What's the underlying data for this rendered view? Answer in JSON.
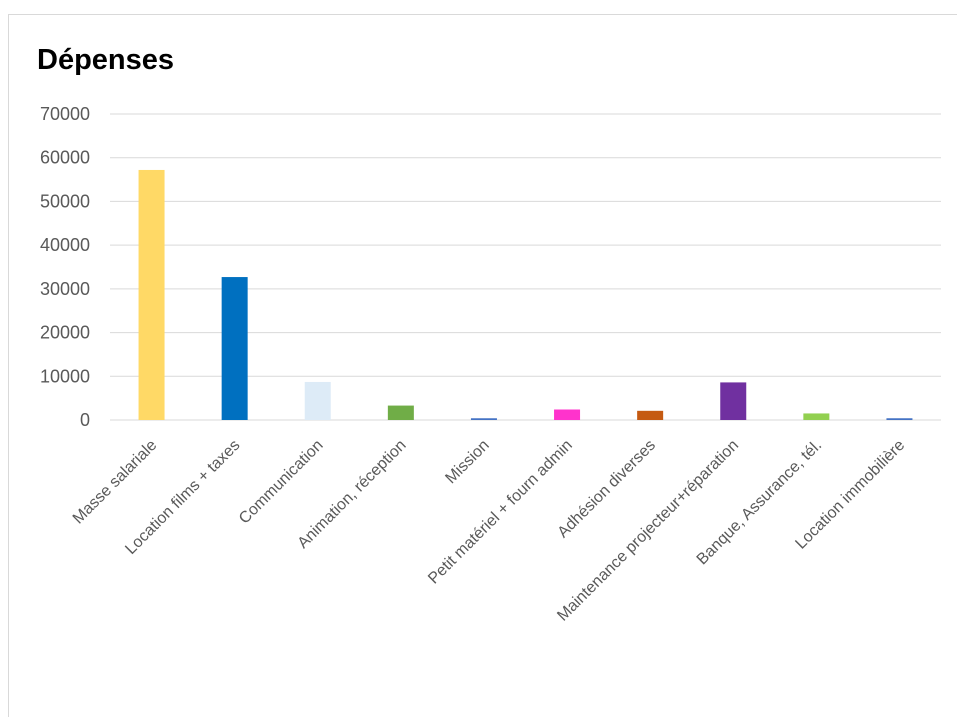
{
  "chart_data": {
    "type": "bar",
    "title": "Dépenses",
    "categories": [
      "Masse salariale",
      "Location films + taxes",
      "Communication",
      "Animation, réception",
      "Mission",
      "Petit matériel + fourn admin",
      "Adhésion diverses",
      "Maintenance projecteur+réparation",
      "Banque, Assurance, tél.",
      "Location immobilière"
    ],
    "values": [
      57200,
      32700,
      8700,
      3300,
      400,
      2400,
      2100,
      8600,
      1500,
      400
    ],
    "colors": [
      "#FFD966",
      "#0070C0",
      "#DDEBF7",
      "#70AD47",
      "#4472C4",
      "#FF33CC",
      "#C55A11",
      "#7030A0",
      "#92D050",
      "#4472C4"
    ],
    "ylim": [
      0,
      70000
    ],
    "yticks": [
      0,
      10000,
      20000,
      30000,
      40000,
      50000,
      60000,
      70000
    ],
    "grid": true,
    "legend": "none"
  }
}
